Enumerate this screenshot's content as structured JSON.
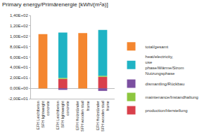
{
  "chart_data": {
    "type": "bar",
    "title": "Primary energy/Primärenergie [kWh/(m²a)]",
    "categories": [
      "EFH Leichtbeton SFH lightweight concrete",
      "EFH Leichtbeton SFH lightweight concrete",
      "EFH Holzständer SFH wooden stud frame",
      "EFH Holzständer SFH wooden stud frame"
    ],
    "stacked": true,
    "grid": false,
    "legend": "right",
    "series": [
      {
        "name": "production/Herstellung",
        "color": "#d9404b",
        "values": [
          null,
          18,
          null,
          22
        ]
      },
      {
        "name": "maintenance/Instandhaltung",
        "color": "#8dc63f",
        "values": [
          null,
          2,
          null,
          2
        ]
      },
      {
        "name": "dismantling/Rückbau",
        "color": "#7b4fa0",
        "values": [
          null,
          -3,
          null,
          -5
        ]
      },
      {
        "name": "heat/electricity, use phase/Wärme/Strom Nutzungsphase",
        "color": "#1fb3c4",
        "values": [
          null,
          87,
          null,
          88
        ]
      },
      {
        "name": "total/gesamt",
        "color": "#f4862f",
        "values": [
          104,
          null,
          106,
          null
        ]
      }
    ],
    "ylim": [
      -20,
      140
    ],
    "yticks": [
      {
        "value": -20,
        "label": "-2,00E+01"
      },
      {
        "value": 0,
        "label": "0,00E+00"
      },
      {
        "value": 20,
        "label": "2,00E+01"
      },
      {
        "value": 40,
        "label": "4,00E+01"
      },
      {
        "value": 60,
        "label": "6,00E+01"
      },
      {
        "value": 80,
        "label": "8,00E+01"
      },
      {
        "value": 100,
        "label": "1,00E+02"
      },
      {
        "value": 120,
        "label": "1,20E+02"
      },
      {
        "value": 140,
        "label": "1,40E+02"
      }
    ]
  }
}
